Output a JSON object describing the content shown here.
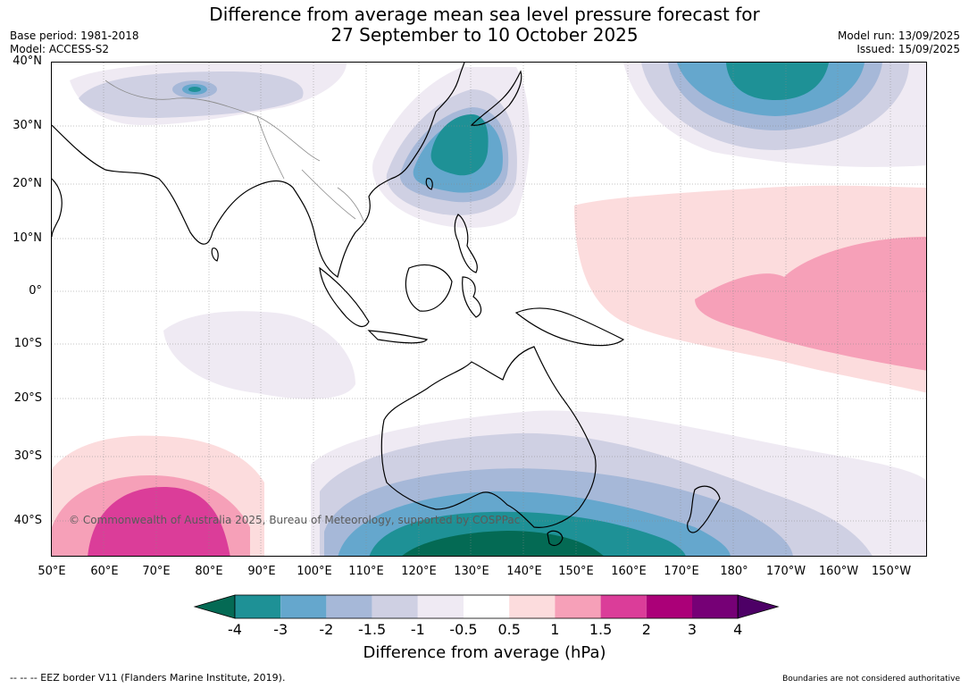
{
  "title_line1": "Difference from average mean sea level pressure forecast for",
  "title_line2": "27 September to 10 October 2025",
  "base_period": "Base period: 1981-2018",
  "model": "Model: ACCESS-S2",
  "model_run": "Model run: 13/09/2025",
  "issued": "Issued: 15/09/2025",
  "lat_labels": [
    "40°N",
    "30°N",
    "20°N",
    "10°N",
    "0°",
    "10°S",
    "20°S",
    "30°S",
    "40°S"
  ],
  "lon_labels": [
    "50°E",
    "60°E",
    "70°E",
    "80°E",
    "90°E",
    "100°E",
    "110°E",
    "120°E",
    "130°E",
    "140°E",
    "150°E",
    "160°E",
    "170°E",
    "180°",
    "170°W",
    "160°W",
    "150°W"
  ],
  "copyright": "© Commonwealth of Australia 2025, Bureau of Meteorology, supported by COSPPac",
  "colorbar": {
    "ticks": [
      "-4",
      "-3",
      "-2",
      "-1.5",
      "-1",
      "-0.5",
      "0.5",
      "1",
      "1.5",
      "2",
      "3",
      "4"
    ],
    "colors": [
      "#046a54",
      "#1e9196",
      "#65a7cd",
      "#a6b8d8",
      "#cfd0e3",
      "#efeaf3",
      "#ffffff",
      "#fcdcdd",
      "#f6a0b8",
      "#db3d99",
      "#ab0078",
      "#760076",
      "#4d0066"
    ],
    "label": "Difference from average (hPa)"
  },
  "footer_left": "--  --  -- EEZ border V11 (Flanders Marine Institute, 2019).",
  "footer_right": "Boundaries are not considered authoritative"
}
